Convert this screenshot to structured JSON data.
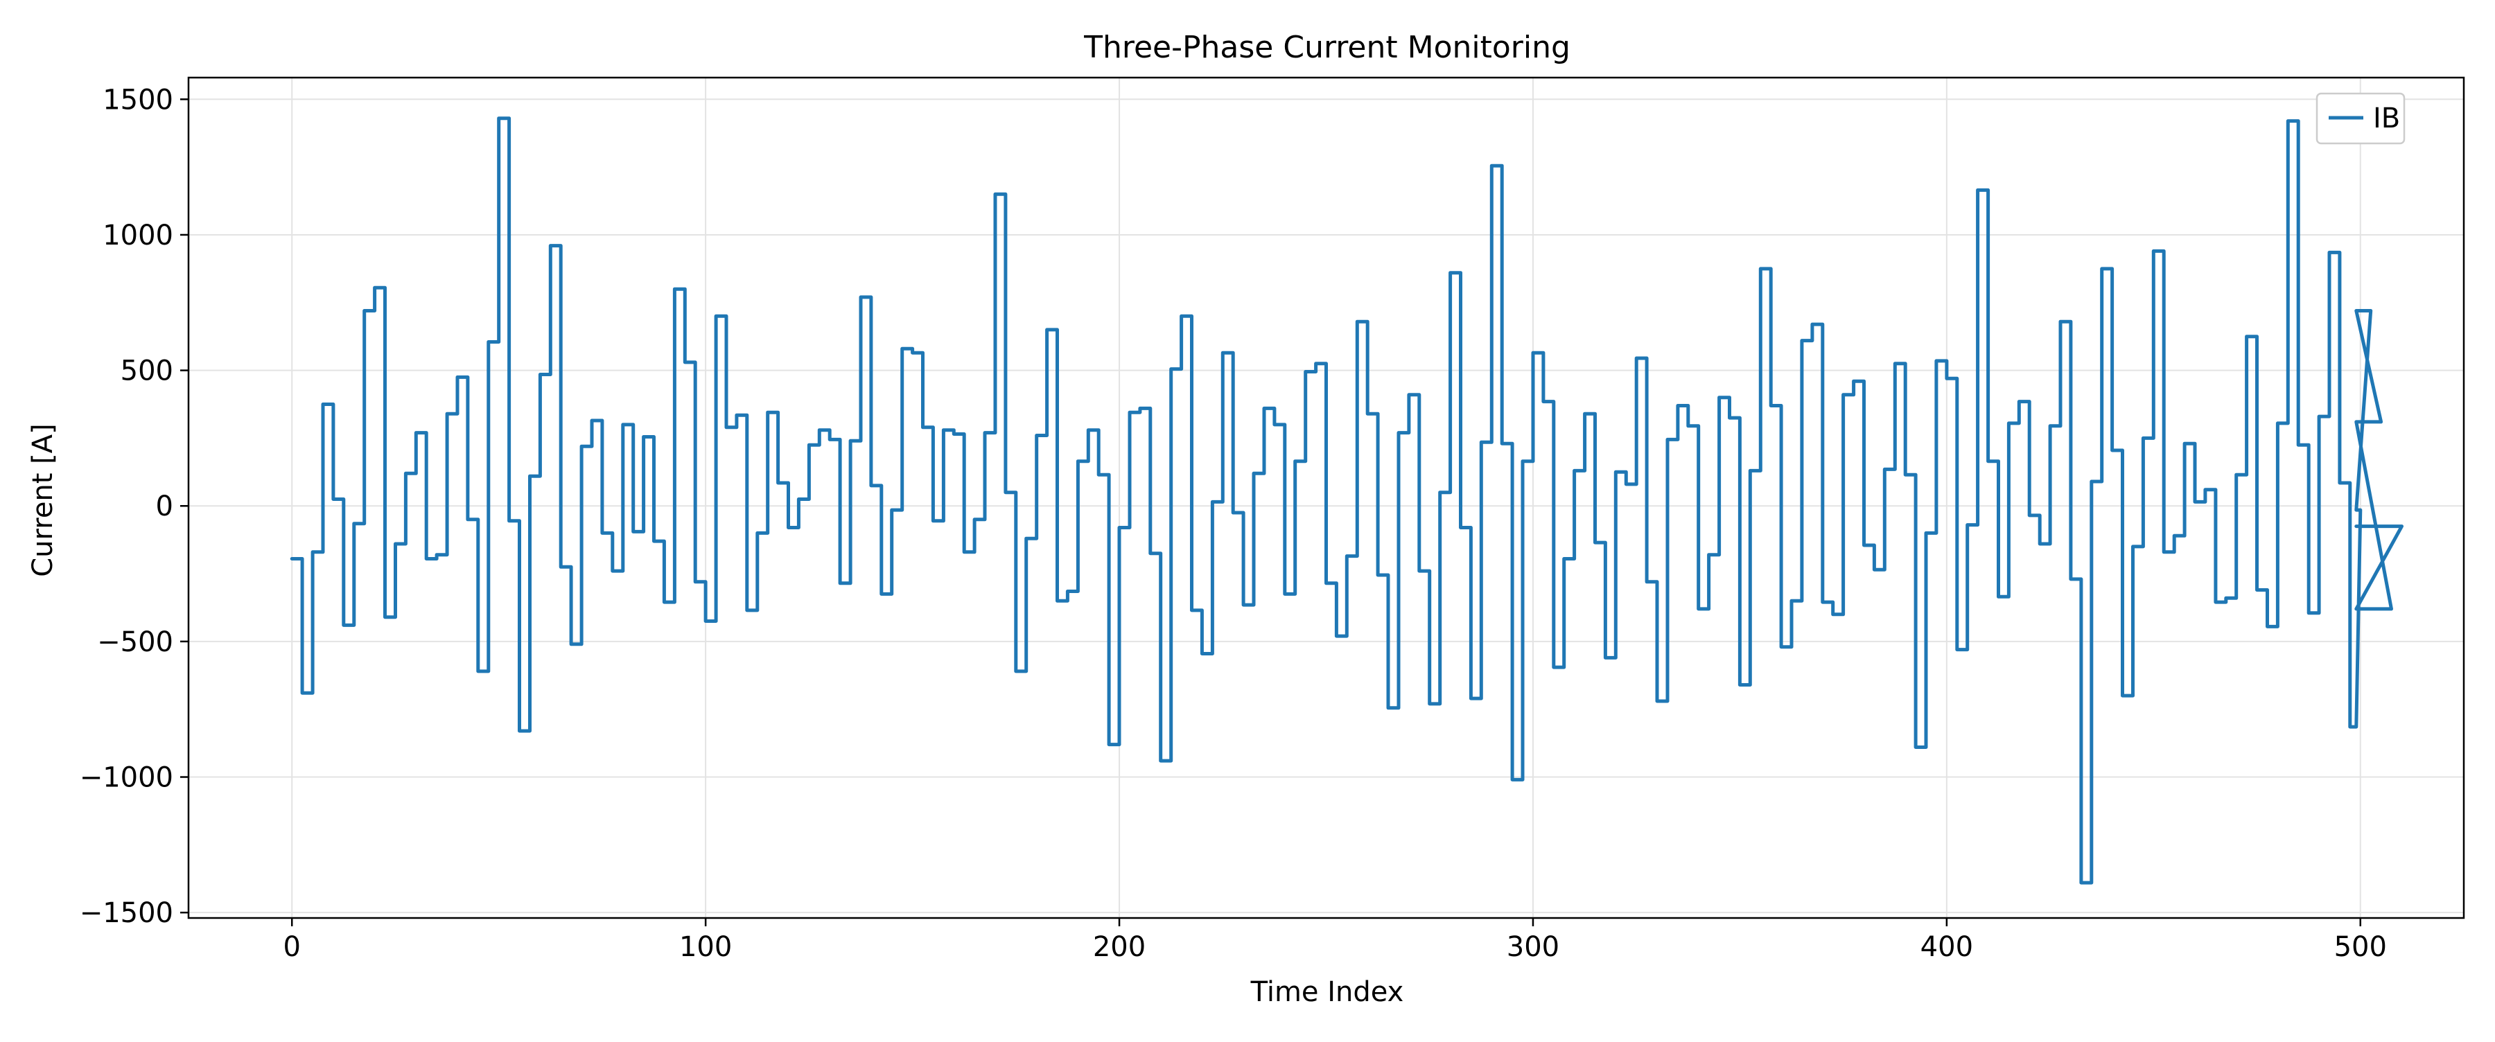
{
  "chart_data": {
    "type": "line",
    "title": "Three-Phase Current Monitoring",
    "xlabel": "Time Index",
    "ylabel": "Current [A]",
    "xlim": [
      -25,
      525
    ],
    "ylim": [
      -1520,
      1580
    ],
    "xticks": [
      0,
      100,
      200,
      300,
      400,
      500
    ],
    "xtick_labels": [
      "0",
      "100",
      "200",
      "300",
      "400",
      "500"
    ],
    "yticks": [
      -1500,
      -1000,
      -500,
      0,
      500,
      1000,
      1500
    ],
    "ytick_labels": [
      "−1500",
      "−1000",
      "−500",
      "0",
      "500",
      "1000",
      "1500"
    ],
    "grid": true,
    "legend_position": "top-right",
    "series": [
      {
        "name": "IB",
        "color": "#1f77b4",
        "step": 2.5,
        "x_start": 0,
        "values": [
          -195,
          -690,
          -170,
          375,
          25,
          -440,
          -65,
          720,
          805,
          -410,
          -140,
          120,
          270,
          -195,
          -180,
          340,
          475,
          -50,
          -610,
          605,
          1430,
          -55,
          -830,
          110,
          485,
          960,
          -225,
          -510,
          220,
          315,
          -100,
          -240,
          300,
          -95,
          255,
          -130,
          -355,
          800,
          530,
          -280,
          -425,
          700,
          290,
          335,
          -385,
          -100,
          345,
          85,
          -80,
          25,
          225,
          280,
          245,
          -285,
          240,
          770,
          75,
          -325,
          -15,
          580,
          565,
          290,
          -55,
          280,
          265,
          -170,
          -50,
          270,
          1150,
          50,
          -610,
          -120,
          260,
          650,
          -350,
          -315,
          165,
          280,
          115,
          -880,
          -80,
          345,
          360,
          -175,
          -940,
          505,
          700,
          -385,
          -545,
          15,
          565,
          -25,
          -365,
          120,
          360,
          300,
          -325,
          165,
          495,
          525,
          -285,
          -480,
          -185,
          680,
          340,
          -255,
          -745,
          270,
          410,
          -240,
          -730,
          50,
          860,
          -80,
          -710,
          235,
          1255,
          230,
          -1010,
          165,
          565,
          385,
          -595,
          -195,
          130,
          340,
          -135,
          -560,
          125,
          80,
          545,
          -280,
          -720,
          245,
          370,
          295,
          -380,
          -180,
          400,
          325,
          -660,
          130,
          875,
          370,
          -520,
          -350,
          610,
          670,
          -355,
          -400,
          410,
          460,
          -145,
          -235,
          135,
          525,
          115,
          -890,
          -100,
          535,
          470,
          -530,
          -70,
          1165,
          165,
          -335,
          305,
          385,
          -35,
          -140,
          295,
          680,
          -270,
          -1390,
          90,
          875,
          205,
          -700,
          -150,
          250,
          940,
          -170,
          -110,
          230,
          15,
          60,
          -355,
          -340,
          115,
          625,
          -310,
          -445,
          305,
          1420,
          225,
          -395,
          330,
          935,
          85,
          -815,
          -15,
          720,
          310,
          -380,
          -75
        ]
      }
    ]
  }
}
